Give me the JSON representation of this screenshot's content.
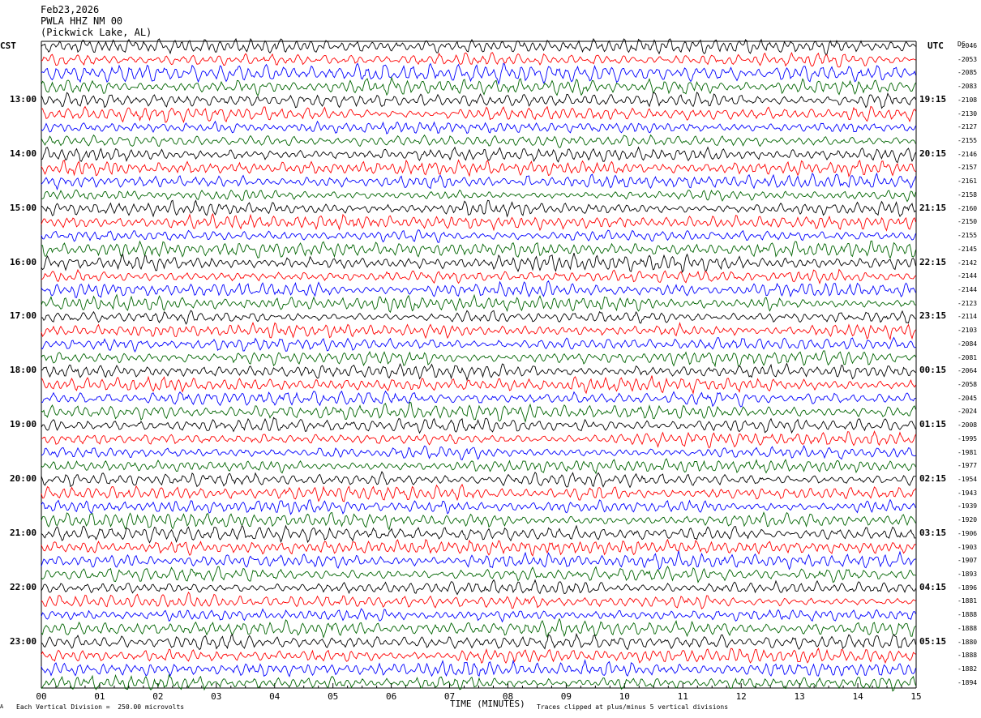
{
  "header": {
    "date": "Feb23,2026",
    "station": "PWLA HHZ NM 00",
    "location": "(Pickwick Lake, AL)"
  },
  "left_axis_label": "CST",
  "right_axis_label": "UTC",
  "dc_header": "DC",
  "x_axis_label": "TIME (MINUTES)",
  "footer": {
    "scale_note": "Each Vertical Division =  250.00 microvolts",
    "clip_note": "Traces clipped at plus/minus 5 vertical divisions",
    "corner_mark": "A"
  },
  "colors": {
    "trace_cycle": [
      "#000000",
      "#ff0000",
      "#0000ff",
      "#006400"
    ]
  },
  "chart_data": {
    "type": "line",
    "trace_count": 48,
    "xlim": [
      0,
      15
    ],
    "x_ticks": [
      "00",
      "01",
      "02",
      "03",
      "04",
      "05",
      "06",
      "07",
      "08",
      "09",
      "10",
      "11",
      "12",
      "13",
      "14",
      "15"
    ],
    "left_time_labels": [
      {
        "trace": 4,
        "label": "13:00"
      },
      {
        "trace": 8,
        "label": "14:00"
      },
      {
        "trace": 12,
        "label": "15:00"
      },
      {
        "trace": 16,
        "label": "16:00"
      },
      {
        "trace": 20,
        "label": "17:00"
      },
      {
        "trace": 24,
        "label": "18:00"
      },
      {
        "trace": 28,
        "label": "19:00"
      },
      {
        "trace": 32,
        "label": "20:00"
      },
      {
        "trace": 36,
        "label": "21:00"
      },
      {
        "trace": 40,
        "label": "22:00"
      },
      {
        "trace": 44,
        "label": "23:00"
      }
    ],
    "right_time_labels": [
      {
        "trace": 4,
        "label": "19:15"
      },
      {
        "trace": 8,
        "label": "20:15"
      },
      {
        "trace": 12,
        "label": "21:15"
      },
      {
        "trace": 16,
        "label": "22:15"
      },
      {
        "trace": 20,
        "label": "23:15"
      },
      {
        "trace": 24,
        "label": "00:15"
      },
      {
        "trace": 28,
        "label": "01:15"
      },
      {
        "trace": 32,
        "label": "02:15"
      },
      {
        "trace": 36,
        "label": "03:15"
      },
      {
        "trace": 40,
        "label": "04:15"
      },
      {
        "trace": 44,
        "label": "05:15"
      }
    ],
    "dc_offsets": [
      -2046,
      -2053,
      -2085,
      -2083,
      -2108,
      -2130,
      -2127,
      -2155,
      -2146,
      -2157,
      -2161,
      -2158,
      -2160,
      -2150,
      -2155,
      -2145,
      -2142,
      -2144,
      -2144,
      -2123,
      -2114,
      -2103,
      -2084,
      -2081,
      -2064,
      -2058,
      -2045,
      -2024,
      -2008,
      -1995,
      -1981,
      -1977,
      -1954,
      -1943,
      -1939,
      -1920,
      -1906,
      -1903,
      -1907,
      -1893,
      -1896,
      -1881,
      -1888,
      -1888,
      -1880,
      -1888,
      -1882,
      -1894
    ]
  }
}
